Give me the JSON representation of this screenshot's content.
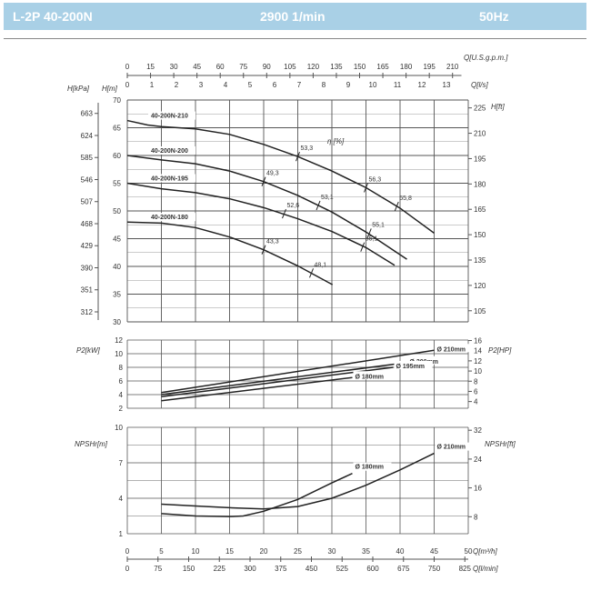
{
  "header": {
    "model": "L-2P 40-200N",
    "speed": "2900 1/min",
    "frequency": "50Hz"
  },
  "chart_data": [
    {
      "type": "line",
      "title": "Head",
      "xlabel": "Q[m³/h]",
      "ylabel": "H[m]",
      "ylabel_kpa": "H[kPa]",
      "ylabel_right": "H[ft]",
      "xlim": [
        0,
        50
      ],
      "ylim": [
        30,
        70
      ],
      "top_axes": {
        "gpm_label": "Q[U.S.g.p.m.]",
        "gpm_ticks": [
          0,
          15,
          30,
          45,
          60,
          75,
          90,
          105,
          120,
          135,
          150,
          165,
          180,
          195,
          210
        ],
        "ls_label": "Q[l/s]",
        "ls_ticks": [
          0,
          1,
          2,
          3,
          4,
          5,
          6,
          7,
          8,
          9,
          10,
          11,
          12,
          13
        ]
      },
      "y_ticks": [
        30,
        35,
        40,
        45,
        50,
        55,
        60,
        65,
        70
      ],
      "kpa_ticks": [
        312,
        351,
        390,
        429,
        468,
        507,
        546,
        585,
        624,
        663
      ],
      "ft_ticks": [
        105,
        120,
        135,
        150,
        165,
        180,
        195,
        210,
        225
      ],
      "efficiency_label": "η [%]",
      "series": [
        {
          "name": "40-200N-210",
          "x": [
            0,
            3,
            5,
            10,
            15,
            20,
            25,
            30,
            35,
            40,
            45
          ],
          "y": [
            66.3,
            65.5,
            65.2,
            64.8,
            63.8,
            62,
            59.8,
            57.2,
            54.2,
            50.5,
            46
          ]
        },
        {
          "name": "40-200N-200",
          "x": [
            0,
            5,
            10,
            15,
            20,
            25,
            30,
            35,
            41
          ],
          "y": [
            60,
            59.2,
            58.5,
            57.2,
            55.3,
            52.8,
            49.8,
            46.2,
            41.3
          ]
        },
        {
          "name": "40-200N-195",
          "x": [
            0,
            5,
            10,
            15,
            20,
            25,
            30,
            35,
            39.2
          ],
          "y": [
            55,
            54,
            53.3,
            52.2,
            50.6,
            48.6,
            46.3,
            43.4,
            40.2
          ]
        },
        {
          "name": "40-200N-180",
          "x": [
            0,
            5,
            10,
            15,
            20,
            25,
            30.1
          ],
          "y": [
            48,
            47.8,
            47,
            45.3,
            43,
            40.1,
            36.7
          ]
        }
      ],
      "efficiency_marks": [
        {
          "value": "53,3",
          "x": 25,
          "y": 59.8
        },
        {
          "value": "56,3",
          "x": 35,
          "y": 54.2
        },
        {
          "value": "55,8",
          "x": 39.5,
          "y": 50.8
        },
        {
          "value": "49,3",
          "x": 20,
          "y": 55.3
        },
        {
          "value": "53,1",
          "x": 28,
          "y": 51
        },
        {
          "value": "55,1",
          "x": 35.5,
          "y": 46
        },
        {
          "value": "52,6",
          "x": 23,
          "y": 49.5
        },
        {
          "value": "55,1",
          "x": 34.5,
          "y": 43.5
        },
        {
          "value": "43,3",
          "x": 20,
          "y": 43
        },
        {
          "value": "48,1",
          "x": 27,
          "y": 38.8
        }
      ]
    },
    {
      "type": "line",
      "title": "Power",
      "ylabel": "P2[kW]",
      "ylabel_right": "P2[HP]",
      "ylim": [
        2,
        12
      ],
      "y_ticks": [
        2,
        4,
        6,
        8,
        10,
        12
      ],
      "hp_ticks": [
        4,
        6,
        8,
        10,
        12,
        14,
        16
      ],
      "series": [
        {
          "name": "Ø 210mm",
          "x": [
            5,
            45
          ],
          "y": [
            4.3,
            10.5
          ]
        },
        {
          "name": "Ø 200mm",
          "x": [
            5,
            41
          ],
          "y": [
            4.0,
            8.7
          ]
        },
        {
          "name": "Ø 195mm",
          "x": [
            5,
            39
          ],
          "y": [
            3.7,
            8.0
          ]
        },
        {
          "name": "Ø 180mm",
          "x": [
            5,
            33
          ],
          "y": [
            3.1,
            6.5
          ]
        }
      ]
    },
    {
      "type": "line",
      "title": "NPSH",
      "ylabel": "NPSHr[m]",
      "ylabel_right": "NPSHr[ft]",
      "ylim": [
        1,
        10
      ],
      "y_ticks": [
        1,
        4,
        7,
        10
      ],
      "ft_ticks": [
        8,
        16,
        24,
        32
      ],
      "series": [
        {
          "name": "Ø 210mm",
          "x": [
            5,
            10,
            15,
            20,
            25,
            30,
            35,
            40,
            45
          ],
          "y": [
            3.5,
            3.35,
            3.2,
            3.1,
            3.3,
            4,
            5.1,
            6.4,
            7.8
          ]
        },
        {
          "name": "Ø 180mm",
          "x": [
            5,
            10,
            15,
            17,
            20,
            25,
            30,
            33
          ],
          "y": [
            2.7,
            2.5,
            2.45,
            2.5,
            2.9,
            3.9,
            5.3,
            6.1
          ]
        }
      ],
      "bottom_axes": {
        "m3h_label": "Q[m³/h]",
        "m3h_ticks": [
          0,
          5,
          10,
          15,
          20,
          25,
          30,
          35,
          40,
          45,
          50
        ],
        "lmin_label": "Q[l/min]",
        "lmin_ticks": [
          0,
          75,
          150,
          225,
          300,
          375,
          450,
          525,
          600,
          675,
          750,
          825
        ]
      }
    }
  ]
}
